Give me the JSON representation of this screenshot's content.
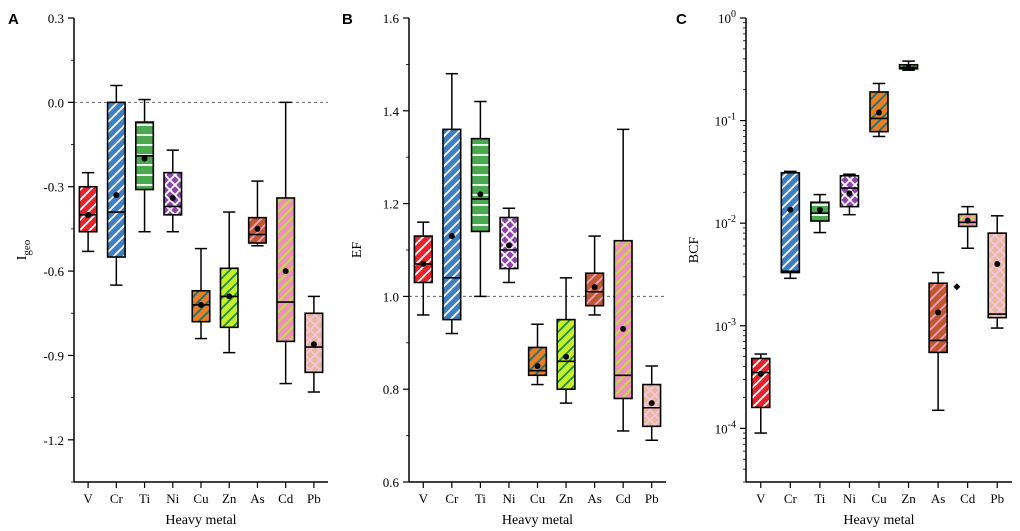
{
  "figure_title": "Heavy metal boxplots",
  "chart_data": [
    {
      "type": "box",
      "panel": "A",
      "ylabel_main": "I",
      "ylabel_sub": "geo",
      "xlabel": "Heavy metal",
      "yscale": "linear",
      "ylim": [
        -1.35,
        0.3
      ],
      "yticks": [
        0.3,
        0.0,
        -0.3,
        -0.6,
        -0.9,
        -1.2
      ],
      "ytick_labels": [
        "0.3",
        "0.0",
        "-0.3",
        "-0.6",
        "-0.9",
        "-1.2"
      ],
      "reference_line": 0.0,
      "categories": [
        "V",
        "Cr",
        "Ti",
        "Ni",
        "Cu",
        "Zn",
        "As",
        "Cd",
        "Pb"
      ],
      "boxes": [
        {
          "min": -0.53,
          "q1": -0.46,
          "median": -0.4,
          "q3": -0.3,
          "max": -0.25,
          "mean": -0.4
        },
        {
          "min": -0.65,
          "q1": -0.55,
          "median": -0.39,
          "q3": 0.0,
          "max": 0.06,
          "mean": -0.33
        },
        {
          "min": -0.46,
          "q1": -0.31,
          "median": -0.19,
          "q3": -0.07,
          "max": 0.01,
          "mean": -0.2
        },
        {
          "min": -0.46,
          "q1": -0.4,
          "median": -0.37,
          "q3": -0.25,
          "max": -0.17,
          "mean": -0.34
        },
        {
          "min": -0.84,
          "q1": -0.78,
          "median": -0.72,
          "q3": -0.67,
          "max": -0.52,
          "mean": -0.72
        },
        {
          "min": -0.89,
          "q1": -0.8,
          "median": -0.69,
          "q3": -0.59,
          "max": -0.39,
          "mean": -0.69
        },
        {
          "min": -0.51,
          "q1": -0.5,
          "median": -0.47,
          "q3": -0.41,
          "max": -0.28,
          "mean": -0.45
        },
        {
          "min": -1.0,
          "q1": -0.85,
          "median": -0.71,
          "q3": -0.34,
          "max": 0.0,
          "mean": -0.6
        },
        {
          "min": -1.03,
          "q1": -0.96,
          "median": -0.87,
          "q3": -0.75,
          "max": -0.69,
          "mean": -0.86
        }
      ]
    },
    {
      "type": "box",
      "panel": "B",
      "ylabel_main": "EF",
      "ylabel_sub": "",
      "xlabel": "Heavy metal",
      "yscale": "linear",
      "ylim": [
        0.6,
        1.6
      ],
      "yticks": [
        1.6,
        1.4,
        1.2,
        1.0,
        0.8,
        0.6
      ],
      "ytick_labels": [
        "1.6",
        "1.4",
        "1.2",
        "1.0",
        "0.8",
        "0.6"
      ],
      "reference_line": 1.0,
      "categories": [
        "V",
        "Cr",
        "Ti",
        "Ni",
        "Cu",
        "Zn",
        "As",
        "Cd",
        "Pb"
      ],
      "boxes": [
        {
          "min": 0.96,
          "q1": 1.03,
          "median": 1.07,
          "q3": 1.13,
          "max": 1.16,
          "mean": 1.07
        },
        {
          "min": 0.92,
          "q1": 0.95,
          "median": 1.04,
          "q3": 1.36,
          "max": 1.48,
          "mean": 1.13
        },
        {
          "min": 1.0,
          "q1": 1.14,
          "median": 1.21,
          "q3": 1.34,
          "max": 1.42,
          "mean": 1.22
        },
        {
          "min": 1.03,
          "q1": 1.06,
          "median": 1.1,
          "q3": 1.17,
          "max": 1.19,
          "mean": 1.11
        },
        {
          "min": 0.81,
          "q1": 0.83,
          "median": 0.84,
          "q3": 0.89,
          "max": 0.94,
          "mean": 0.85
        },
        {
          "min": 0.77,
          "q1": 0.8,
          "median": 0.86,
          "q3": 0.95,
          "max": 1.04,
          "mean": 0.87
        },
        {
          "min": 0.96,
          "q1": 0.98,
          "median": 1.01,
          "q3": 1.05,
          "max": 1.13,
          "mean": 1.02
        },
        {
          "min": 0.71,
          "q1": 0.78,
          "median": 0.83,
          "q3": 1.12,
          "max": 1.36,
          "mean": 0.93
        },
        {
          "min": 0.69,
          "q1": 0.72,
          "median": 0.76,
          "q3": 0.81,
          "max": 0.85,
          "mean": 0.77
        }
      ]
    },
    {
      "type": "box",
      "panel": "C",
      "ylabel_main": "BCF",
      "ylabel_sub": "",
      "xlabel": "Heavy metal",
      "yscale": "log",
      "ylim": [
        3e-05,
        1.0
      ],
      "ytick_exponents": [
        0,
        -1,
        -2,
        -3,
        -4
      ],
      "ytick_base": "10",
      "categories": [
        "V",
        "Cr",
        "Ti",
        "Ni",
        "Cu",
        "Zn",
        "As",
        "Cd",
        "Pb"
      ],
      "boxes": [
        {
          "min": 9e-05,
          "q1": 0.00016,
          "median": 0.00035,
          "q3": 0.00048,
          "max": 0.00053,
          "mean": 0.00034
        },
        {
          "min": 0.0029,
          "q1": 0.0033,
          "median": 0.0034,
          "q3": 0.031,
          "max": 0.032,
          "mean": 0.0135
        },
        {
          "min": 0.0081,
          "q1": 0.0105,
          "median": 0.0125,
          "q3": 0.016,
          "max": 0.019,
          "mean": 0.0135
        },
        {
          "min": 0.0121,
          "q1": 0.0145,
          "median": 0.022,
          "q3": 0.029,
          "max": 0.03,
          "mean": 0.0195
        },
        {
          "min": 0.07,
          "q1": 0.078,
          "median": 0.105,
          "q3": 0.19,
          "max": 0.23,
          "mean": 0.12
        },
        {
          "min": 0.31,
          "q1": 0.32,
          "median": 0.33,
          "q3": 0.35,
          "max": 0.38,
          "mean": 0.33
        },
        {
          "min": 0.00015,
          "q1": 0.00055,
          "median": 0.00072,
          "q3": 0.0026,
          "max": 0.0033,
          "mean": 0.00135
        },
        {
          "min": 0.0057,
          "q1": 0.0093,
          "median": 0.0102,
          "q3": 0.0122,
          "max": 0.0145,
          "mean": 0.0106,
          "outliers": [
            0.0024
          ]
        },
        {
          "min": 0.00095,
          "q1": 0.0012,
          "median": 0.0013,
          "q3": 0.008,
          "max": 0.0118,
          "mean": 0.004
        }
      ]
    }
  ],
  "styles": [
    {
      "fill": "#e8212b",
      "hatch": "diag",
      "hatch_color": "#ffffff"
    },
    {
      "fill": "#3d7fc1",
      "hatch": "diag",
      "hatch_color": "#ffffff"
    },
    {
      "fill": "#4aa94e",
      "hatch": "horiz",
      "hatch_color": "#ffffff"
    },
    {
      "fill": "#8e44a8",
      "hatch": "cross",
      "hatch_color": "#ffffff"
    },
    {
      "fill": "#f07d1d",
      "hatch": "diag",
      "hatch_color": "#1f6f77"
    },
    {
      "fill": "#c8f021",
      "hatch": "diag",
      "hatch_color": "#1d8a57"
    },
    {
      "fill": "#c0582e",
      "hatch": "diag",
      "hatch_color": "#f2a0c0"
    },
    {
      "fill": "#ef8fc0",
      "hatch": "diag",
      "hatch_color": "#bfe33a"
    },
    {
      "fill": "#e8b89a",
      "hatch": "cross",
      "hatch_color": "#f2c6e0"
    }
  ]
}
